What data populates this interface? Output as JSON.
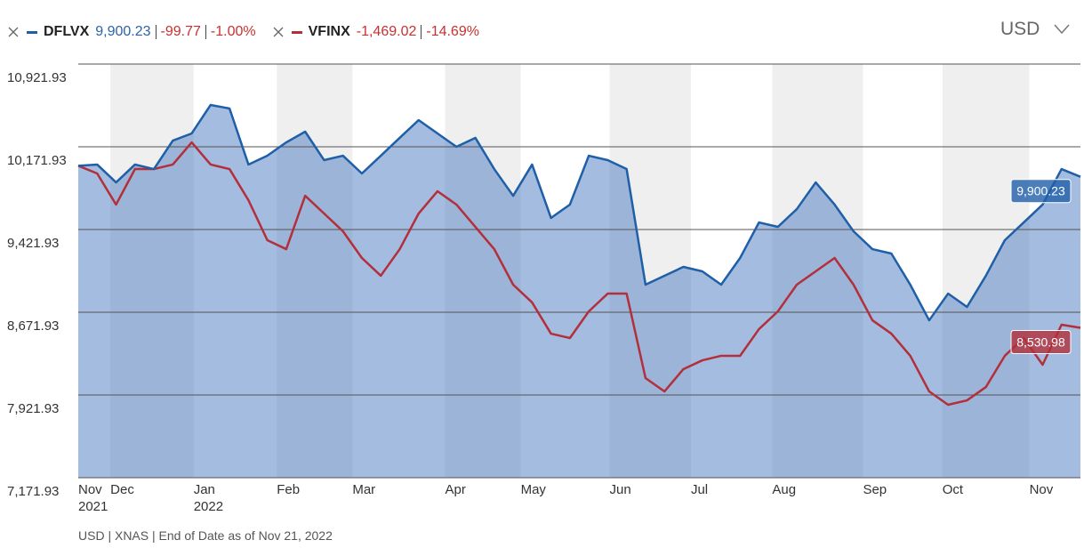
{
  "chart_data": {
    "type": "line",
    "currency": "USD",
    "footer": "USD | XNAS | End of Date as of Nov 21, 2022",
    "xlim": [
      0,
      53
    ],
    "xticks": [
      {
        "value": 0,
        "label": "Nov",
        "year": "2021"
      },
      {
        "value": 1.7,
        "label": "Dec"
      },
      {
        "value": 6.1,
        "label": "Jan",
        "year": "2022"
      },
      {
        "value": 10.5,
        "label": "Feb"
      },
      {
        "value": 14.5,
        "label": "Mar"
      },
      {
        "value": 19.4,
        "label": "Apr"
      },
      {
        "value": 23.4,
        "label": "May"
      },
      {
        "value": 28.1,
        "label": "Jun"
      },
      {
        "value": 32.4,
        "label": "Jul"
      },
      {
        "value": 36.7,
        "label": "Aug"
      },
      {
        "value": 41.5,
        "label": "Sep"
      },
      {
        "value": 45.7,
        "label": "Oct"
      },
      {
        "value": 50.3,
        "label": "Nov"
      }
    ],
    "ylim": [
      7171.93,
      10921.93
    ],
    "yticks": [
      {
        "value": 7171.93,
        "label": "7,171.93"
      },
      {
        "value": 7921.93,
        "label": "7,921.93"
      },
      {
        "value": 8671.93,
        "label": "8,671.93"
      },
      {
        "value": 9421.93,
        "label": "9,421.93"
      },
      {
        "value": 10171.93,
        "label": "10,171.93"
      },
      {
        "value": 10921.93,
        "label": "10,921.93"
      }
    ],
    "grid": true,
    "series": [
      {
        "name": "DFLVX",
        "color": "#1f5fa8",
        "last": "9,900.23",
        "change": "-99.77",
        "change_pct": "-1.00%",
        "values": [
          10000,
          10011,
          9849,
          10011,
          9970,
          10228,
          10293,
          10551,
          10519,
          10011,
          10091,
          10212,
          10309,
          10051,
          10091,
          9930,
          10091,
          10253,
          10414,
          10293,
          10172,
          10253,
          9970,
          9728,
          10011,
          9527,
          9648,
          10091,
          10051,
          9970,
          8922,
          9003,
          9083,
          9043,
          8922,
          9164,
          9486,
          9446,
          9607,
          9849,
          9648,
          9406,
          9244,
          9204,
          8922,
          8599,
          8841,
          8720,
          9003,
          9325,
          9486,
          9648,
          9970,
          9900.23
        ]
      },
      {
        "name": "VFINX",
        "color": "#b22f3b",
        "last": "8,530.98",
        "change": "-1,469.02",
        "change_pct": "-14.69%",
        "values": [
          10000,
          9930,
          9648,
          9970,
          9970,
          10011,
          10212,
          10011,
          9970,
          9688,
          9325,
          9244,
          9728,
          9567,
          9406,
          9164,
          9003,
          9244,
          9567,
          9769,
          9648,
          9446,
          9244,
          8922,
          8761,
          8478,
          8438,
          8680,
          8841,
          8841,
          8075,
          7954,
          8156,
          8236,
          8277,
          8277,
          8519,
          8680,
          8922,
          9043,
          9164,
          8922,
          8599,
          8478,
          8277,
          7954,
          7833,
          7873,
          7994,
          8277,
          8438,
          8196,
          8559,
          8530.98
        ]
      }
    ]
  }
}
